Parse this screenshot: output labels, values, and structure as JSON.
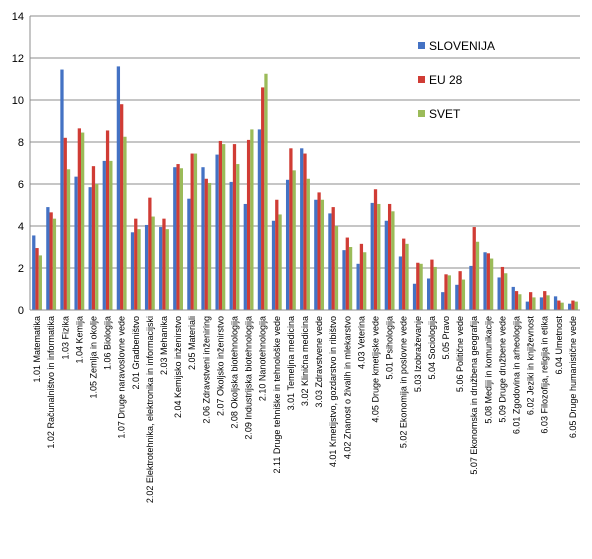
{
  "chart_data": {
    "type": "bar",
    "ylim": [
      0,
      14
    ],
    "yticks": [
      0,
      2,
      4,
      6,
      8,
      10,
      12,
      14
    ],
    "grid": true,
    "legend_position": "right",
    "categories": [
      "1.01 Matematika",
      "1.02 Računalništvo in informatika",
      "1.03 Fizika",
      "1.04 Kemija",
      "1.05 Zemlja in okolje",
      "1.06 Biologija",
      "1.07 Druge naravoslovne vede",
      "2.01 Gradbeništvo",
      "2.02 Elektrotehnika, elektronika in informacijski",
      "2.03 Mehanika",
      "2.04 Kemijsko inženirstvo",
      "2.05 Materiali",
      "2.06 Zdravstveni inženiring",
      "2.07 Okoljsko inženirstvo",
      "2.08 Okoljska biotehnologija",
      "2.09 Industrijska biotehnologija",
      "2.10 Nanotehnologija",
      "2.11 Druge tehniške in tehnološke vede",
      "3.01 Temeljna medicina",
      "3.02 Klinična medicina",
      "3.03 Zdravstvene vede",
      "4.01 Kmetijstvo, gozdarstvo in ribištvo",
      "4.02 Znanost o živalih in mlekarstvo",
      "4.03 Veterina",
      "4.05 Druge kmetijske vede",
      "5.01 Psihologija",
      "5.02 Ekonomija in poslovne vede",
      "5.03 Izobraževanje",
      "5.04 Sociologija",
      "5.05 Pravo",
      "5.06 Politične vede",
      "5.07 Ekonomska in družbena geografija",
      "5.08 Mediji in komunikacije",
      "5.09 Druge družbene vede",
      "6.01 Zgodovina in arheologija",
      "6.02 Jeziki in književnost",
      "6.03 Filozofija, religija in etika",
      "6.04 Umetnost",
      "6.05 Druge humanistične vede"
    ],
    "series": [
      {
        "name": "SLOVENIJA",
        "color": "#4472C4",
        "values": [
          3.55,
          4.9,
          11.45,
          6.35,
          5.85,
          7.1,
          11.6,
          3.7,
          4.05,
          3.95,
          6.8,
          5.3,
          6.8,
          7.4,
          6.1,
          5.05,
          8.6,
          4.25,
          6.2,
          7.7,
          5.25,
          4.6,
          2.85,
          2.2,
          5.1,
          4.25,
          2.55,
          1.25,
          1.5,
          0.85,
          1.2,
          2.1,
          2.75,
          1.55,
          1.1,
          0.4,
          0.6,
          0.65,
          0.3
        ]
      },
      {
        "name": "EU 28",
        "color": "#D03C35",
        "values": [
          2.95,
          4.65,
          8.2,
          8.65,
          6.85,
          8.55,
          9.8,
          4.35,
          5.35,
          4.35,
          6.95,
          7.45,
          6.25,
          8.05,
          7.9,
          8.1,
          10.6,
          5.25,
          7.7,
          7.45,
          5.6,
          4.9,
          3.45,
          3.15,
          5.75,
          5.05,
          3.4,
          2.25,
          2.4,
          1.7,
          1.85,
          3.95,
          2.7,
          2.05,
          0.9,
          0.85,
          0.9,
          0.45,
          0.45
        ]
      },
      {
        "name": "SVET",
        "color": "#9BBB59",
        "values": [
          2.6,
          4.35,
          6.7,
          8.45,
          6.0,
          7.1,
          8.25,
          3.85,
          4.45,
          3.85,
          6.75,
          7.45,
          6.05,
          7.9,
          6.95,
          8.6,
          11.25,
          4.55,
          6.65,
          6.25,
          5.25,
          4.0,
          3.0,
          2.75,
          5.05,
          4.7,
          3.15,
          2.2,
          2.05,
          1.65,
          1.45,
          3.25,
          2.45,
          1.75,
          0.75,
          0.6,
          0.7,
          0.35,
          0.4
        ]
      }
    ]
  }
}
